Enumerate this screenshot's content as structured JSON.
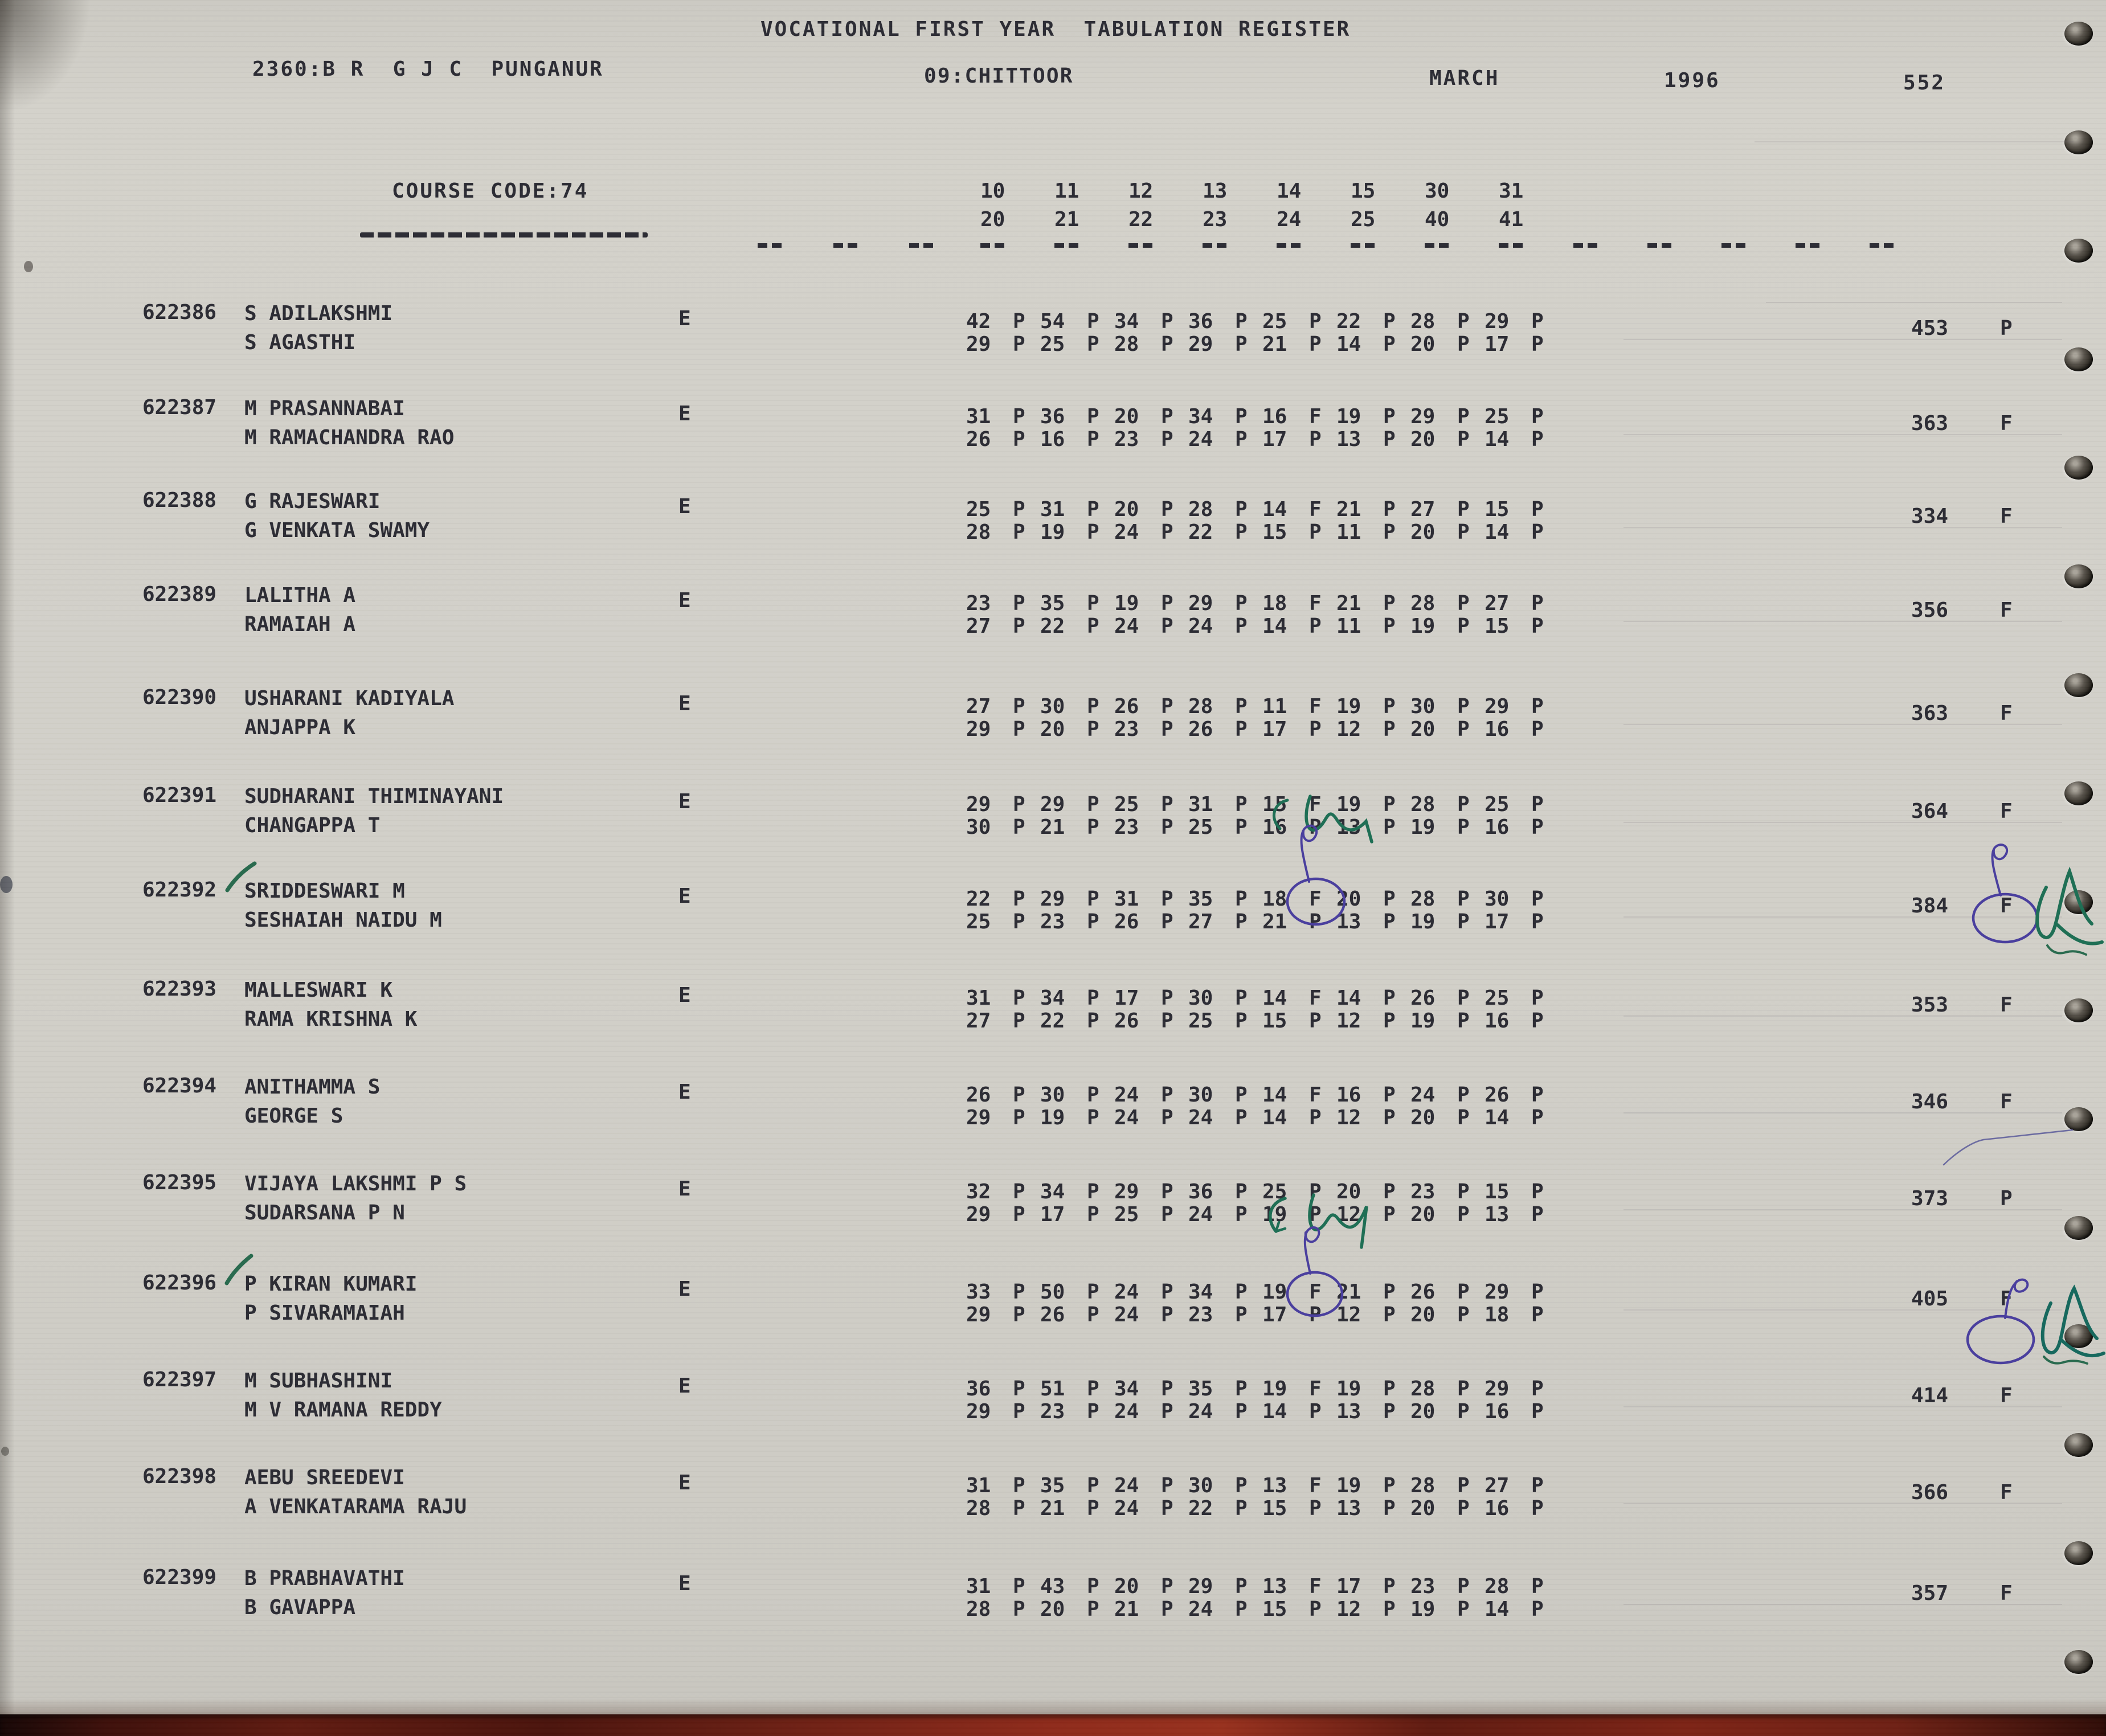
{
  "header": {
    "title": "VOCATIONAL FIRST YEAR  TABULATION REGISTER",
    "college": "2360:B R  G J C  PUNGANUR",
    "district": "09:CHITTOOR",
    "month": "MARCH",
    "year": "1996",
    "page_number": "552"
  },
  "course": {
    "label": "COURSE CODE:74"
  },
  "subjects": {
    "codes_row1": [
      "10",
      "11",
      "12",
      "13",
      "14",
      "15",
      "30",
      "31"
    ],
    "codes_row2": [
      "20",
      "21",
      "22",
      "23",
      "24",
      "25",
      "40",
      "41"
    ]
  },
  "rows": [
    {
      "roll": "622386",
      "name": "S ADILAKSHMI",
      "parent": "S AGASTHI",
      "medium": "E",
      "marks1": [
        [
          "42",
          "P"
        ],
        [
          "54",
          "P"
        ],
        [
          "34",
          "P"
        ],
        [
          "36",
          "P"
        ],
        [
          "25",
          "P"
        ],
        [
          "22",
          "P"
        ],
        [
          "28",
          "P"
        ],
        [
          "29",
          "P"
        ]
      ],
      "marks2": [
        [
          "29",
          "P"
        ],
        [
          "25",
          "P"
        ],
        [
          "28",
          "P"
        ],
        [
          "29",
          "P"
        ],
        [
          "21",
          "P"
        ],
        [
          "14",
          "P"
        ],
        [
          "20",
          "P"
        ],
        [
          "17",
          "P"
        ]
      ],
      "total": "453",
      "result": "P",
      "tick": false,
      "circled_mark_col": null,
      "circled_result": false,
      "pen_line": false
    },
    {
      "roll": "622387",
      "name": "M PRASANNABAI",
      "parent": "M RAMACHANDRA RAO",
      "medium": "E",
      "marks1": [
        [
          "31",
          "P"
        ],
        [
          "36",
          "P"
        ],
        [
          "20",
          "P"
        ],
        [
          "34",
          "P"
        ],
        [
          "16",
          "F"
        ],
        [
          "19",
          "P"
        ],
        [
          "29",
          "P"
        ],
        [
          "25",
          "P"
        ]
      ],
      "marks2": [
        [
          "26",
          "P"
        ],
        [
          "16",
          "P"
        ],
        [
          "23",
          "P"
        ],
        [
          "24",
          "P"
        ],
        [
          "17",
          "P"
        ],
        [
          "13",
          "P"
        ],
        [
          "20",
          "P"
        ],
        [
          "14",
          "P"
        ]
      ],
      "total": "363",
      "result": "F",
      "tick": false,
      "circled_mark_col": null,
      "circled_result": false,
      "pen_line": false
    },
    {
      "roll": "622388",
      "name": "G RAJESWARI",
      "parent": "G VENKATA SWAMY",
      "medium": "E",
      "marks1": [
        [
          "25",
          "P"
        ],
        [
          "31",
          "P"
        ],
        [
          "20",
          "P"
        ],
        [
          "28",
          "P"
        ],
        [
          "14",
          "F"
        ],
        [
          "21",
          "P"
        ],
        [
          "27",
          "P"
        ],
        [
          "15",
          "P"
        ]
      ],
      "marks2": [
        [
          "28",
          "P"
        ],
        [
          "19",
          "P"
        ],
        [
          "24",
          "P"
        ],
        [
          "22",
          "P"
        ],
        [
          "15",
          "P"
        ],
        [
          "11",
          "P"
        ],
        [
          "20",
          "P"
        ],
        [
          "14",
          "P"
        ]
      ],
      "total": "334",
      "result": "F",
      "tick": false,
      "circled_mark_col": null,
      "circled_result": false,
      "pen_line": false
    },
    {
      "roll": "622389",
      "name": "LALITHA A",
      "parent": "RAMAIAH A",
      "medium": "E",
      "marks1": [
        [
          "23",
          "P"
        ],
        [
          "35",
          "P"
        ],
        [
          "19",
          "P"
        ],
        [
          "29",
          "P"
        ],
        [
          "18",
          "F"
        ],
        [
          "21",
          "P"
        ],
        [
          "28",
          "P"
        ],
        [
          "27",
          "P"
        ]
      ],
      "marks2": [
        [
          "27",
          "P"
        ],
        [
          "22",
          "P"
        ],
        [
          "24",
          "P"
        ],
        [
          "24",
          "P"
        ],
        [
          "14",
          "P"
        ],
        [
          "11",
          "P"
        ],
        [
          "19",
          "P"
        ],
        [
          "15",
          "P"
        ]
      ],
      "total": "356",
      "result": "F",
      "tick": false,
      "circled_mark_col": null,
      "circled_result": false,
      "pen_line": false
    },
    {
      "roll": "622390",
      "name": "USHARANI KADIYALA",
      "parent": "ANJAPPA K",
      "medium": "E",
      "marks1": [
        [
          "27",
          "P"
        ],
        [
          "30",
          "P"
        ],
        [
          "26",
          "P"
        ],
        [
          "28",
          "P"
        ],
        [
          "11",
          "F"
        ],
        [
          "19",
          "P"
        ],
        [
          "30",
          "P"
        ],
        [
          "29",
          "P"
        ]
      ],
      "marks2": [
        [
          "29",
          "P"
        ],
        [
          "20",
          "P"
        ],
        [
          "23",
          "P"
        ],
        [
          "26",
          "P"
        ],
        [
          "17",
          "P"
        ],
        [
          "12",
          "P"
        ],
        [
          "20",
          "P"
        ],
        [
          "16",
          "P"
        ]
      ],
      "total": "363",
      "result": "F",
      "tick": false,
      "circled_mark_col": null,
      "circled_result": false,
      "pen_line": false
    },
    {
      "roll": "622391",
      "name": "SUDHARANI THIMINAYANI",
      "parent": "CHANGAPPA T",
      "medium": "E",
      "marks1": [
        [
          "29",
          "P"
        ],
        [
          "29",
          "P"
        ],
        [
          "25",
          "P"
        ],
        [
          "31",
          "P"
        ],
        [
          "15",
          "F"
        ],
        [
          "19",
          "P"
        ],
        [
          "28",
          "P"
        ],
        [
          "25",
          "P"
        ]
      ],
      "marks2": [
        [
          "30",
          "P"
        ],
        [
          "21",
          "P"
        ],
        [
          "23",
          "P"
        ],
        [
          "25",
          "P"
        ],
        [
          "16",
          "P"
        ],
        [
          "13",
          "P"
        ],
        [
          "19",
          "P"
        ],
        [
          "16",
          "P"
        ]
      ],
      "total": "364",
      "result": "F",
      "tick": false,
      "circled_mark_col": null,
      "circled_result": false,
      "pen_line": false
    },
    {
      "roll": "622392",
      "name": "SRIDDESWARI M",
      "parent": "SESHAIAH NAIDU M",
      "medium": "E",
      "marks1": [
        [
          "22",
          "P"
        ],
        [
          "29",
          "P"
        ],
        [
          "31",
          "P"
        ],
        [
          "35",
          "P"
        ],
        [
          "18",
          "F"
        ],
        [
          "20",
          "P"
        ],
        [
          "28",
          "P"
        ],
        [
          "30",
          "P"
        ]
      ],
      "marks2": [
        [
          "25",
          "P"
        ],
        [
          "23",
          "P"
        ],
        [
          "26",
          "P"
        ],
        [
          "27",
          "P"
        ],
        [
          "21",
          "P"
        ],
        [
          "13",
          "P"
        ],
        [
          "19",
          "P"
        ],
        [
          "17",
          "P"
        ]
      ],
      "total": "384",
      "result": "F",
      "tick": true,
      "circled_mark_col": 4,
      "circled_result": true,
      "pen_line": false
    },
    {
      "roll": "622393",
      "name": "MALLESWARI K",
      "parent": "RAMA KRISHNA K",
      "medium": "E",
      "marks1": [
        [
          "31",
          "P"
        ],
        [
          "34",
          "P"
        ],
        [
          "17",
          "P"
        ],
        [
          "30",
          "P"
        ],
        [
          "14",
          "F"
        ],
        [
          "14",
          "P"
        ],
        [
          "26",
          "P"
        ],
        [
          "25",
          "P"
        ]
      ],
      "marks2": [
        [
          "27",
          "P"
        ],
        [
          "22",
          "P"
        ],
        [
          "26",
          "P"
        ],
        [
          "25",
          "P"
        ],
        [
          "15",
          "P"
        ],
        [
          "12",
          "P"
        ],
        [
          "19",
          "P"
        ],
        [
          "16",
          "P"
        ]
      ],
      "total": "353",
      "result": "F",
      "tick": false,
      "circled_mark_col": null,
      "circled_result": false,
      "pen_line": false
    },
    {
      "roll": "622394",
      "name": "ANITHAMMA S",
      "parent": "GEORGE S",
      "medium": "E",
      "marks1": [
        [
          "26",
          "P"
        ],
        [
          "30",
          "P"
        ],
        [
          "24",
          "P"
        ],
        [
          "30",
          "P"
        ],
        [
          "14",
          "F"
        ],
        [
          "16",
          "P"
        ],
        [
          "24",
          "P"
        ],
        [
          "26",
          "P"
        ]
      ],
      "marks2": [
        [
          "29",
          "P"
        ],
        [
          "19",
          "P"
        ],
        [
          "24",
          "P"
        ],
        [
          "24",
          "P"
        ],
        [
          "14",
          "P"
        ],
        [
          "12",
          "P"
        ],
        [
          "20",
          "P"
        ],
        [
          "14",
          "P"
        ]
      ],
      "total": "346",
      "result": "F",
      "tick": false,
      "circled_mark_col": null,
      "circled_result": false,
      "pen_line": true
    },
    {
      "roll": "622395",
      "name": "VIJAYA LAKSHMI P S",
      "parent": "SUDARSANA P N",
      "medium": "E",
      "marks1": [
        [
          "32",
          "P"
        ],
        [
          "34",
          "P"
        ],
        [
          "29",
          "P"
        ],
        [
          "36",
          "P"
        ],
        [
          "25",
          "P"
        ],
        [
          "20",
          "P"
        ],
        [
          "23",
          "P"
        ],
        [
          "15",
          "P"
        ]
      ],
      "marks2": [
        [
          "29",
          "P"
        ],
        [
          "17",
          "P"
        ],
        [
          "25",
          "P"
        ],
        [
          "24",
          "P"
        ],
        [
          "19",
          "P"
        ],
        [
          "12",
          "P"
        ],
        [
          "20",
          "P"
        ],
        [
          "13",
          "P"
        ]
      ],
      "total": "373",
      "result": "P",
      "tick": false,
      "circled_mark_col": null,
      "circled_result": false,
      "pen_line": false
    },
    {
      "roll": "622396",
      "name": "P KIRAN KUMARI",
      "parent": "P SIVARAMAIAH",
      "medium": "E",
      "marks1": [
        [
          "33",
          "P"
        ],
        [
          "50",
          "P"
        ],
        [
          "24",
          "P"
        ],
        [
          "34",
          "P"
        ],
        [
          "19",
          "F"
        ],
        [
          "21",
          "P"
        ],
        [
          "26",
          "P"
        ],
        [
          "29",
          "P"
        ]
      ],
      "marks2": [
        [
          "29",
          "P"
        ],
        [
          "26",
          "P"
        ],
        [
          "24",
          "P"
        ],
        [
          "23",
          "P"
        ],
        [
          "17",
          "P"
        ],
        [
          "12",
          "P"
        ],
        [
          "20",
          "P"
        ],
        [
          "18",
          "P"
        ]
      ],
      "total": "405",
      "result": "F",
      "tick": true,
      "circled_mark_col": 4,
      "circled_result": true,
      "pen_line": false
    },
    {
      "roll": "622397",
      "name": "M SUBHASHINI",
      "parent": "M V RAMANA REDDY",
      "medium": "E",
      "marks1": [
        [
          "36",
          "P"
        ],
        [
          "51",
          "P"
        ],
        [
          "34",
          "P"
        ],
        [
          "35",
          "P"
        ],
        [
          "19",
          "F"
        ],
        [
          "19",
          "P"
        ],
        [
          "28",
          "P"
        ],
        [
          "29",
          "P"
        ]
      ],
      "marks2": [
        [
          "29",
          "P"
        ],
        [
          "23",
          "P"
        ],
        [
          "24",
          "P"
        ],
        [
          "24",
          "P"
        ],
        [
          "14",
          "P"
        ],
        [
          "13",
          "P"
        ],
        [
          "20",
          "P"
        ],
        [
          "16",
          "P"
        ]
      ],
      "total": "414",
      "result": "F",
      "tick": false,
      "circled_mark_col": null,
      "circled_result": false,
      "pen_line": false
    },
    {
      "roll": "622398",
      "name": "AEBU SREEDEVI",
      "parent": "A VENKATARAMA RAJU",
      "medium": "E",
      "marks1": [
        [
          "31",
          "P"
        ],
        [
          "35",
          "P"
        ],
        [
          "24",
          "P"
        ],
        [
          "30",
          "P"
        ],
        [
          "13",
          "F"
        ],
        [
          "19",
          "P"
        ],
        [
          "28",
          "P"
        ],
        [
          "27",
          "P"
        ]
      ],
      "marks2": [
        [
          "28",
          "P"
        ],
        [
          "21",
          "P"
        ],
        [
          "24",
          "P"
        ],
        [
          "22",
          "P"
        ],
        [
          "15",
          "P"
        ],
        [
          "13",
          "P"
        ],
        [
          "20",
          "P"
        ],
        [
          "16",
          "P"
        ]
      ],
      "total": "366",
      "result": "F",
      "tick": false,
      "circled_mark_col": null,
      "circled_result": false,
      "pen_line": false
    },
    {
      "roll": "622399",
      "name": "B PRABHAVATHI",
      "parent": "B GAVAPPA",
      "medium": "E",
      "marks1": [
        [
          "31",
          "P"
        ],
        [
          "43",
          "P"
        ],
        [
          "20",
          "P"
        ],
        [
          "29",
          "P"
        ],
        [
          "13",
          "F"
        ],
        [
          "17",
          "P"
        ],
        [
          "23",
          "P"
        ],
        [
          "28",
          "P"
        ]
      ],
      "marks2": [
        [
          "28",
          "P"
        ],
        [
          "20",
          "P"
        ],
        [
          "21",
          "P"
        ],
        [
          "24",
          "P"
        ],
        [
          "15",
          "P"
        ],
        [
          "12",
          "P"
        ],
        [
          "19",
          "P"
        ],
        [
          "14",
          "P"
        ]
      ],
      "total": "357",
      "result": "F",
      "tick": false,
      "circled_mark_col": null,
      "circled_result": false,
      "pen_line": false
    }
  ],
  "annotations": {
    "row_622392": [
      "green-tick-on-roll",
      "fail-mark-circled-blue-pen",
      "green-flourish-over-marks",
      "result-circled-blue-pen",
      "green-flourish-beside-result"
    ],
    "row_622394": [
      "thin-pen-line-below-total"
    ],
    "row_622396": [
      "green-tick-on-roll",
      "fail-mark-circled-blue-pen",
      "green-flourish-over-marks",
      "result-circled-blue-pen",
      "green-flourish-beside-result"
    ]
  },
  "colors": {
    "ink": "#2b2b33",
    "paper": "#d1cfc8",
    "pen_blue": "#4a3f9e",
    "pen_green": "#1f6f55",
    "binder_red": "#6e2014"
  }
}
